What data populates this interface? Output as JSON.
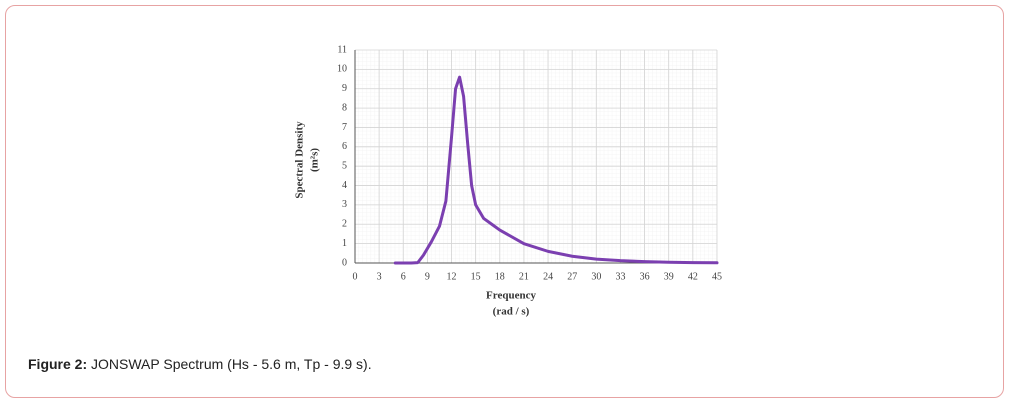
{
  "chart_data": {
    "type": "line",
    "ylabel": "Spectral Density",
    "ylabel_unit": "(m²s)",
    "xlabel": "Frequency",
    "xlabel_unit": "(rad / s)",
    "xlim": [
      0,
      45
    ],
    "xticks": [
      0,
      3,
      6,
      9,
      12,
      15,
      18,
      21,
      24,
      27,
      30,
      33,
      36,
      39,
      42,
      45
    ],
    "ylim": [
      0,
      11
    ],
    "yticks": [
      0,
      1,
      2,
      3,
      4,
      5,
      6,
      7,
      8,
      9,
      10,
      11
    ],
    "grid": true,
    "series": [
      {
        "color": "#7b3fb0",
        "x": [
          5,
          7,
          7.8,
          8.5,
          9.5,
          10.5,
          11.3,
          12,
          12.5,
          13,
          13.5,
          14,
          14.5,
          15,
          16,
          17,
          18,
          21,
          24,
          27,
          30,
          33,
          36,
          39,
          42,
          45
        ],
        "values": [
          0,
          0,
          0.02,
          0.4,
          1.1,
          1.9,
          3.2,
          6.5,
          9.0,
          9.6,
          8.6,
          6.2,
          4.0,
          3.0,
          2.3,
          2.0,
          1.7,
          1.0,
          0.6,
          0.35,
          0.2,
          0.12,
          0.07,
          0.04,
          0.02,
          0.01
        ]
      }
    ]
  },
  "caption": {
    "label": "Figure 2:",
    "text": "JONSWAP Spectrum (Hs - 5.6 m, Tp - 9.9 s)."
  }
}
